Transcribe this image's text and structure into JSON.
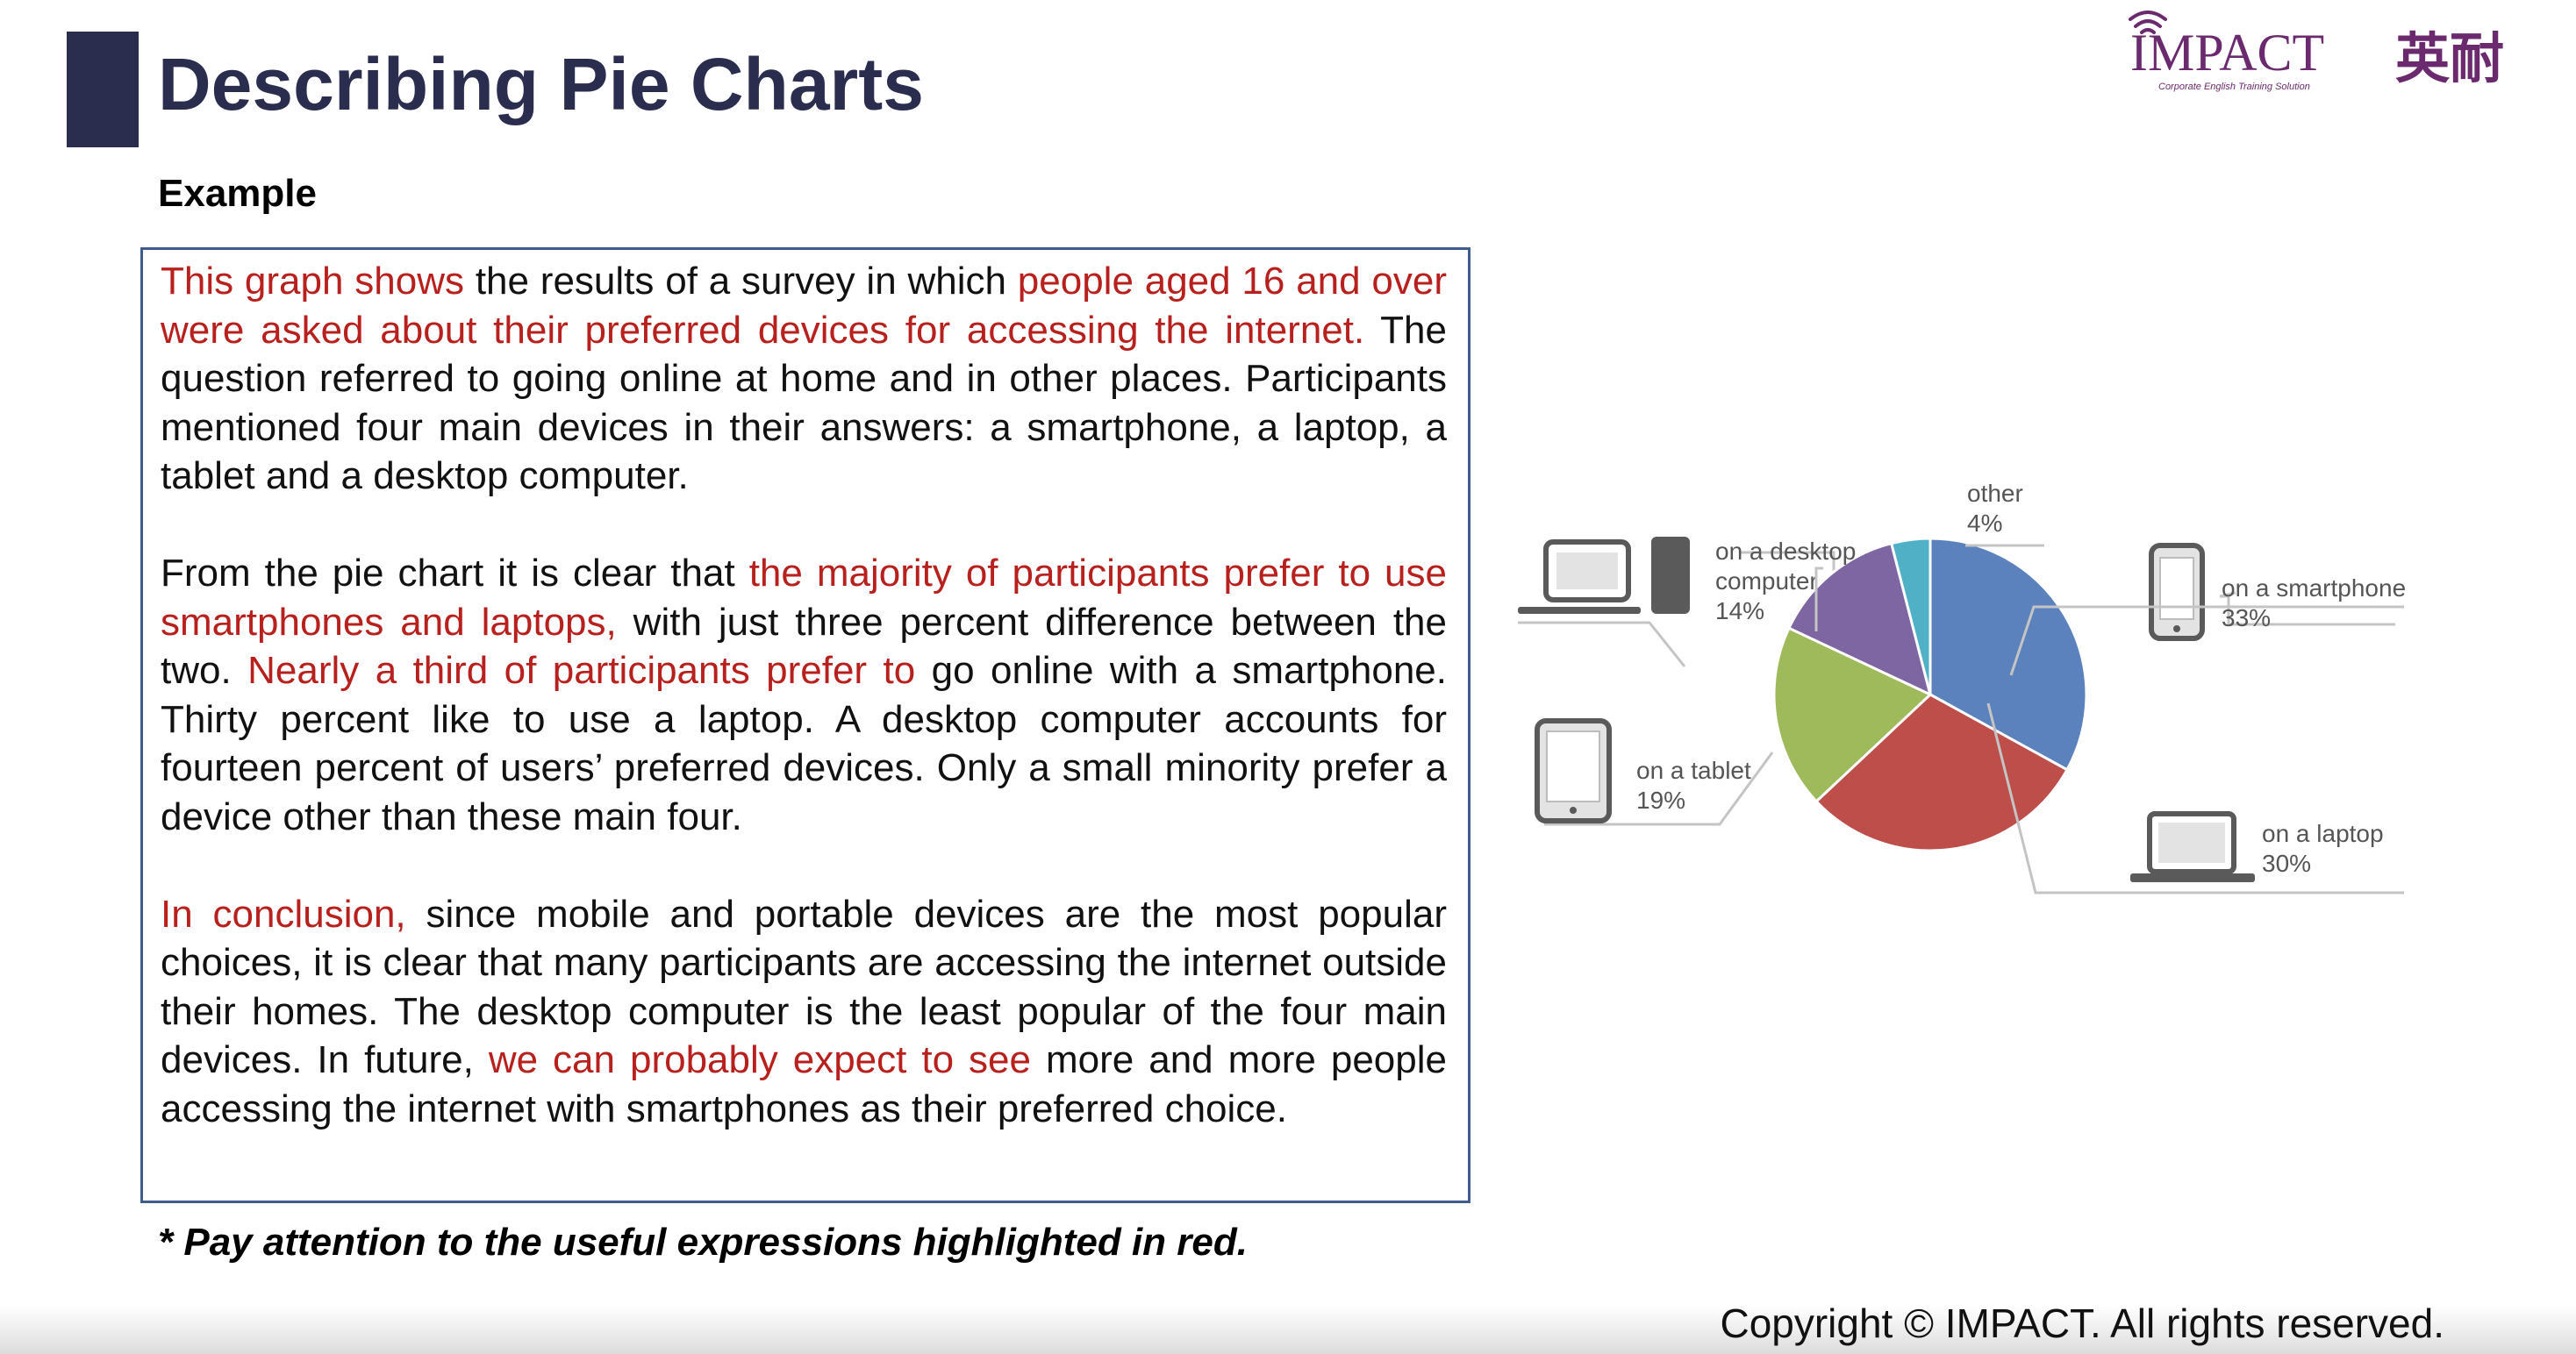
{
  "slide": {
    "title": "Describing Pie Charts",
    "subtitle": "Example",
    "note": "* Pay attention to the useful expressions highlighted in red.",
    "copyright": "Copyright © IMPACT. All rights reserved."
  },
  "logo": {
    "brand": "IMPACT",
    "chinese": "英耐",
    "tagline": "Corporate English Training Solution"
  },
  "paragraphs": [
    [
      {
        "text": "This graph shows",
        "highlight": true
      },
      {
        "text": " the results of a survey in which ",
        "highlight": false
      },
      {
        "text": "people aged 16 and over were asked about their preferred devices for accessing the internet.",
        "highlight": true
      },
      {
        "text": " The question referred to going online at home and in other places. Participants mentioned four main devices in their answers: a smartphone, a laptop, a tablet and a desktop computer.",
        "highlight": false
      }
    ],
    [
      {
        "text": "From the pie chart it is clear that ",
        "highlight": false
      },
      {
        "text": "the majority of participants prefer to use smartphones and laptops,",
        "highlight": true
      },
      {
        "text": " with just three percent difference between the two. ",
        "highlight": false
      },
      {
        "text": "Nearly a third of participants prefer to",
        "highlight": true
      },
      {
        "text": " go online with a smartphone. Thirty percent like to use a laptop. A desktop computer accounts for fourteen percent of users’ preferred devices. Only a small minority prefer a device other than these main four.",
        "highlight": false
      }
    ],
    [
      {
        "text": "In conclusion,",
        "highlight": true
      },
      {
        "text": " since mobile and portable devices are the most popular choices, it is clear that many participants are accessing the internet outside their homes. The desktop computer is the least popular of the four main devices. In future, ",
        "highlight": false
      },
      {
        "text": "we can probably expect to see",
        "highlight": true
      },
      {
        "text": " more and more people accessing the internet with smartphones as their preferred choice.",
        "highlight": false
      }
    ]
  ],
  "colors": {
    "title": "#2b2d4f",
    "highlight": "#b8201d",
    "border": "#3f5c8a"
  },
  "chart_data": {
    "type": "pie",
    "slices": [
      {
        "lines": [
          "on a smartphone"
        ],
        "pct_label": "33%",
        "value": 33,
        "color": "#5b82bd",
        "icon": "smartphone-icon"
      },
      {
        "lines": [
          "on a laptop"
        ],
        "pct_label": "30%",
        "value": 30,
        "color": "#bd4e4a",
        "icon": "laptop-icon"
      },
      {
        "lines": [
          "on a tablet"
        ],
        "pct_label": "19%",
        "value": 19,
        "color": "#9fba5a",
        "icon": "tablet-icon"
      },
      {
        "lines": [
          "on a desktop",
          "computer"
        ],
        "pct_label": "14%",
        "value": 14,
        "color": "#7e66a3",
        "icon": "desktop-computer-icon"
      },
      {
        "lines": [
          "other"
        ],
        "pct_label": "4%",
        "value": 4,
        "color": "#4fb0c6",
        "icon": ""
      }
    ]
  }
}
